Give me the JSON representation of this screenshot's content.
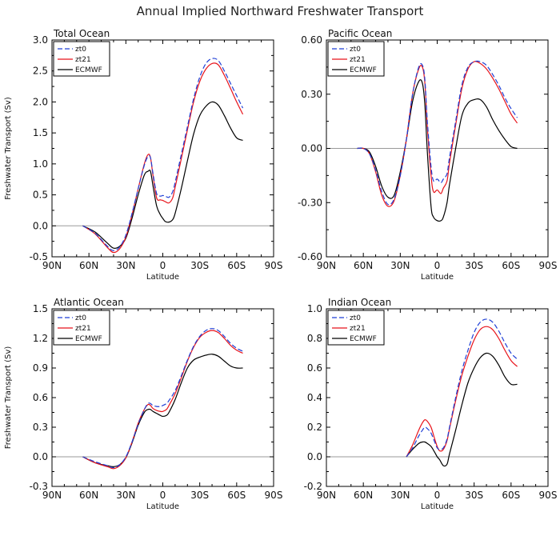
{
  "figure": {
    "title": "Annual Implied Northward Freshwater Transport"
  },
  "colors": {
    "zt0": "#1f3fd6",
    "zt21": "#e8131a",
    "ECMWF": "#000000",
    "zero_line": "#9a9a9a"
  },
  "chart_data": [
    {
      "type": "line",
      "title": "Total Ocean",
      "xlabel": "Latitude",
      "ylabel": "Freshwater Transport (Sv)",
      "xlim": [
        90,
        -90
      ],
      "xticks": [
        90,
        60,
        30,
        0,
        -30,
        -60,
        -90
      ],
      "xticklabels": [
        "90N",
        "60N",
        "30N",
        "0",
        "30S",
        "60S",
        "90S"
      ],
      "ylim": [
        -0.5,
        3.0
      ],
      "yticks": [
        -0.5,
        0.0,
        0.5,
        1.0,
        1.5,
        2.0,
        2.5,
        3.0
      ],
      "yticklabels": [
        "-0.5",
        "0.0",
        "0.5",
        "1.0",
        "1.5",
        "2.0",
        "2.5",
        "3.0"
      ],
      "legend": "top-left",
      "series": [
        {
          "name": "zt0",
          "style": "dashed",
          "x": [
            65,
            55,
            45,
            40,
            35,
            30,
            25,
            20,
            15,
            12,
            10,
            8,
            5,
            2,
            0,
            -2,
            -5,
            -8,
            -10,
            -15,
            -20,
            -25,
            -30,
            -35,
            -40,
            -45,
            -50,
            -55,
            -60,
            -65
          ],
          "y": [
            0.0,
            -0.12,
            -0.33,
            -0.4,
            -0.34,
            -0.15,
            0.2,
            0.6,
            0.98,
            1.12,
            1.1,
            0.85,
            0.52,
            0.48,
            0.49,
            0.48,
            0.46,
            0.55,
            0.7,
            1.15,
            1.6,
            2.05,
            2.4,
            2.62,
            2.7,
            2.67,
            2.5,
            2.3,
            2.1,
            1.9
          ]
        },
        {
          "name": "zt21",
          "style": "solid",
          "x": [
            65,
            55,
            45,
            40,
            35,
            30,
            25,
            20,
            15,
            12,
            10,
            8,
            5,
            2,
            0,
            -2,
            -5,
            -8,
            -10,
            -15,
            -20,
            -25,
            -30,
            -35,
            -40,
            -45,
            -50,
            -55,
            -60,
            -65
          ],
          "y": [
            0.0,
            -0.13,
            -0.35,
            -0.43,
            -0.37,
            -0.18,
            0.18,
            0.6,
            1.0,
            1.15,
            1.1,
            0.82,
            0.45,
            0.42,
            0.41,
            0.39,
            0.37,
            0.45,
            0.62,
            1.08,
            1.55,
            2.0,
            2.33,
            2.53,
            2.62,
            2.6,
            2.43,
            2.22,
            2.0,
            1.8
          ]
        },
        {
          "name": "ECMWF",
          "style": "solid",
          "x": [
            65,
            55,
            45,
            40,
            35,
            30,
            25,
            20,
            15,
            12,
            10,
            8,
            5,
            2,
            0,
            -2,
            -5,
            -8,
            -10,
            -15,
            -20,
            -25,
            -30,
            -35,
            -40,
            -45,
            -50,
            -55,
            -60,
            -65
          ],
          "y": [
            0.0,
            -0.1,
            -0.28,
            -0.36,
            -0.33,
            -0.2,
            0.12,
            0.5,
            0.82,
            0.88,
            0.88,
            0.65,
            0.32,
            0.18,
            0.12,
            0.07,
            0.06,
            0.1,
            0.2,
            0.6,
            1.05,
            1.48,
            1.78,
            1.93,
            2.0,
            1.95,
            1.78,
            1.58,
            1.42,
            1.38
          ]
        }
      ]
    },
    {
      "type": "line",
      "title": "Pacific Ocean",
      "xlabel": "Latitude",
      "ylabel": "",
      "xlim": [
        90,
        -90
      ],
      "xticks": [
        90,
        60,
        30,
        0,
        -30,
        -60,
        -90
      ],
      "xticklabels": [
        "90N",
        "60N",
        "30N",
        "0",
        "30S",
        "60S",
        "90S"
      ],
      "ylim": [
        -0.6,
        0.6
      ],
      "yticks": [
        -0.6,
        -0.3,
        0.0,
        0.3,
        0.6
      ],
      "yticklabels": [
        "-0.60",
        "-0.30",
        "0.00",
        "0.30",
        "0.60"
      ],
      "legend": "top-left",
      "series": [
        {
          "name": "zt0",
          "style": "dashed",
          "x": [
            65,
            60,
            55,
            50,
            45,
            40,
            35,
            30,
            25,
            20,
            15,
            12,
            10,
            8,
            5,
            3,
            0,
            -3,
            -5,
            -8,
            -10,
            -15,
            -20,
            -25,
            -30,
            -35,
            -40,
            -45,
            -50,
            -55,
            -60,
            -65
          ],
          "y": [
            0.0,
            0.0,
            -0.03,
            -0.12,
            -0.24,
            -0.31,
            -0.28,
            -0.15,
            0.05,
            0.3,
            0.45,
            0.46,
            0.38,
            0.15,
            -0.1,
            -0.18,
            -0.17,
            -0.19,
            -0.17,
            -0.14,
            -0.05,
            0.15,
            0.35,
            0.45,
            0.48,
            0.48,
            0.46,
            0.41,
            0.35,
            0.28,
            0.22,
            0.17
          ]
        },
        {
          "name": "zt21",
          "style": "solid",
          "x": [
            65,
            60,
            55,
            50,
            45,
            40,
            35,
            30,
            25,
            20,
            15,
            12,
            10,
            8,
            5,
            3,
            0,
            -3,
            -5,
            -8,
            -10,
            -15,
            -20,
            -25,
            -30,
            -35,
            -40,
            -45,
            -50,
            -55,
            -60,
            -65
          ],
          "y": [
            0.0,
            0.0,
            -0.03,
            -0.13,
            -0.26,
            -0.32,
            -0.29,
            -0.15,
            0.05,
            0.3,
            0.44,
            0.45,
            0.36,
            0.12,
            -0.15,
            -0.24,
            -0.23,
            -0.25,
            -0.22,
            -0.18,
            -0.08,
            0.13,
            0.33,
            0.44,
            0.48,
            0.47,
            0.44,
            0.39,
            0.33,
            0.26,
            0.19,
            0.14
          ]
        },
        {
          "name": "ECMWF",
          "style": "solid",
          "x": [
            65,
            60,
            55,
            50,
            45,
            40,
            35,
            30,
            25,
            20,
            15,
            12,
            10,
            8,
            5,
            3,
            0,
            -3,
            -5,
            -8,
            -10,
            -15,
            -20,
            -25,
            -30,
            -35,
            -40,
            -45,
            -50,
            -55,
            -60,
            -65
          ],
          "y": [
            0.0,
            0.0,
            -0.02,
            -0.1,
            -0.21,
            -0.27,
            -0.26,
            -0.13,
            0.05,
            0.26,
            0.37,
            0.36,
            0.24,
            -0.02,
            -0.32,
            -0.38,
            -0.4,
            -0.4,
            -0.38,
            -0.3,
            -0.2,
            0.0,
            0.18,
            0.25,
            0.27,
            0.27,
            0.23,
            0.16,
            0.1,
            0.05,
            0.01,
            0.0
          ]
        }
      ]
    },
    {
      "type": "line",
      "title": "Atlantic Ocean",
      "xlabel": "Latitude",
      "ylabel": "Freshwater Transport (Sv)",
      "xlim": [
        90,
        -90
      ],
      "xticks": [
        90,
        60,
        30,
        0,
        -30,
        -60,
        -90
      ],
      "xticklabels": [
        "90N",
        "60N",
        "30N",
        "0",
        "30S",
        "60S",
        "90S"
      ],
      "ylim": [
        -0.3,
        1.5
      ],
      "yticks": [
        -0.3,
        0.0,
        0.3,
        0.6,
        0.9,
        1.2,
        1.5
      ],
      "yticklabels": [
        "-0.3",
        "0.0",
        "0.3",
        "0.6",
        "0.9",
        "1.2",
        "1.5"
      ],
      "legend": "top-left",
      "series": [
        {
          "name": "zt0",
          "style": "dashed",
          "x": [
            65,
            55,
            45,
            40,
            35,
            30,
            25,
            20,
            15,
            12,
            10,
            8,
            5,
            2,
            0,
            -3,
            -5,
            -10,
            -15,
            -20,
            -25,
            -30,
            -35,
            -40,
            -45,
            -50,
            -55,
            -60,
            -65
          ],
          "y": [
            0.0,
            -0.05,
            -0.09,
            -0.11,
            -0.08,
            0.0,
            0.15,
            0.33,
            0.48,
            0.54,
            0.54,
            0.52,
            0.51,
            0.51,
            0.52,
            0.54,
            0.57,
            0.67,
            0.82,
            0.98,
            1.12,
            1.22,
            1.28,
            1.3,
            1.28,
            1.22,
            1.15,
            1.1,
            1.07
          ]
        },
        {
          "name": "zt21",
          "style": "solid",
          "x": [
            65,
            55,
            45,
            40,
            35,
            30,
            25,
            20,
            15,
            12,
            10,
            8,
            5,
            2,
            0,
            -3,
            -5,
            -10,
            -15,
            -20,
            -25,
            -30,
            -35,
            -40,
            -45,
            -50,
            -55,
            -60,
            -65
          ],
          "y": [
            0.0,
            -0.06,
            -0.1,
            -0.12,
            -0.09,
            -0.01,
            0.15,
            0.34,
            0.48,
            0.53,
            0.52,
            0.49,
            0.47,
            0.46,
            0.46,
            0.48,
            0.52,
            0.64,
            0.8,
            0.97,
            1.11,
            1.21,
            1.26,
            1.28,
            1.26,
            1.2,
            1.13,
            1.08,
            1.05
          ]
        },
        {
          "name": "ECMWF",
          "style": "solid",
          "x": [
            65,
            55,
            45,
            40,
            35,
            30,
            25,
            20,
            15,
            12,
            10,
            8,
            5,
            2,
            0,
            -3,
            -5,
            -10,
            -15,
            -20,
            -25,
            -30,
            -35,
            -40,
            -45,
            -50,
            -55,
            -60,
            -65
          ],
          "y": [
            0.0,
            -0.06,
            -0.09,
            -0.1,
            -0.08,
            -0.01,
            0.14,
            0.32,
            0.45,
            0.48,
            0.48,
            0.46,
            0.44,
            0.42,
            0.41,
            0.42,
            0.45,
            0.58,
            0.75,
            0.9,
            0.98,
            1.01,
            1.03,
            1.04,
            1.02,
            0.97,
            0.92,
            0.9,
            0.9
          ]
        }
      ]
    },
    {
      "type": "line",
      "title": "Indian Ocean",
      "xlabel": "Latitude",
      "ylabel": "",
      "xlim": [
        90,
        -90
      ],
      "xticks": [
        90,
        60,
        30,
        0,
        -30,
        -60,
        -90
      ],
      "xticklabels": [
        "90N",
        "60N",
        "30N",
        "0",
        "30S",
        "60S",
        "90S"
      ],
      "ylim": [
        -0.2,
        1.0
      ],
      "yticks": [
        -0.2,
        0.0,
        0.2,
        0.4,
        0.6,
        0.8,
        1.0
      ],
      "yticklabels": [
        "-0.2",
        "0.0",
        "0.2",
        "0.4",
        "0.6",
        "0.8",
        "1.0"
      ],
      "legend": "top-left",
      "series": [
        {
          "name": "zt0",
          "style": "dashed",
          "x": [
            25,
            20,
            15,
            12,
            10,
            8,
            5,
            2,
            0,
            -2,
            -5,
            -8,
            -10,
            -15,
            -20,
            -25,
            -30,
            -35,
            -40,
            -45,
            -50,
            -55,
            -60,
            -65
          ],
          "y": [
            0.0,
            0.06,
            0.14,
            0.18,
            0.2,
            0.19,
            0.16,
            0.1,
            0.06,
            0.05,
            0.06,
            0.12,
            0.2,
            0.4,
            0.58,
            0.72,
            0.84,
            0.91,
            0.93,
            0.91,
            0.85,
            0.77,
            0.7,
            0.66
          ]
        },
        {
          "name": "zt21",
          "style": "solid",
          "x": [
            25,
            20,
            15,
            12,
            10,
            8,
            5,
            2,
            0,
            -2,
            -5,
            -8,
            -10,
            -15,
            -20,
            -25,
            -30,
            -35,
            -40,
            -45,
            -50,
            -55,
            -60,
            -65
          ],
          "y": [
            0.0,
            0.08,
            0.18,
            0.23,
            0.25,
            0.24,
            0.2,
            0.12,
            0.07,
            0.04,
            0.05,
            0.11,
            0.19,
            0.38,
            0.55,
            0.68,
            0.79,
            0.86,
            0.88,
            0.86,
            0.8,
            0.72,
            0.65,
            0.61
          ]
        },
        {
          "name": "ECMWF",
          "style": "solid",
          "x": [
            25,
            20,
            15,
            12,
            10,
            8,
            5,
            2,
            0,
            -2,
            -5,
            -8,
            -10,
            -15,
            -20,
            -25,
            -30,
            -35,
            -40,
            -45,
            -50,
            -55,
            -60,
            -65
          ],
          "y": [
            0.0,
            0.05,
            0.09,
            0.1,
            0.1,
            0.09,
            0.07,
            0.03,
            0.0,
            -0.02,
            -0.06,
            -0.05,
            0.02,
            0.18,
            0.35,
            0.5,
            0.6,
            0.67,
            0.7,
            0.68,
            0.62,
            0.54,
            0.49,
            0.49
          ]
        }
      ]
    }
  ]
}
